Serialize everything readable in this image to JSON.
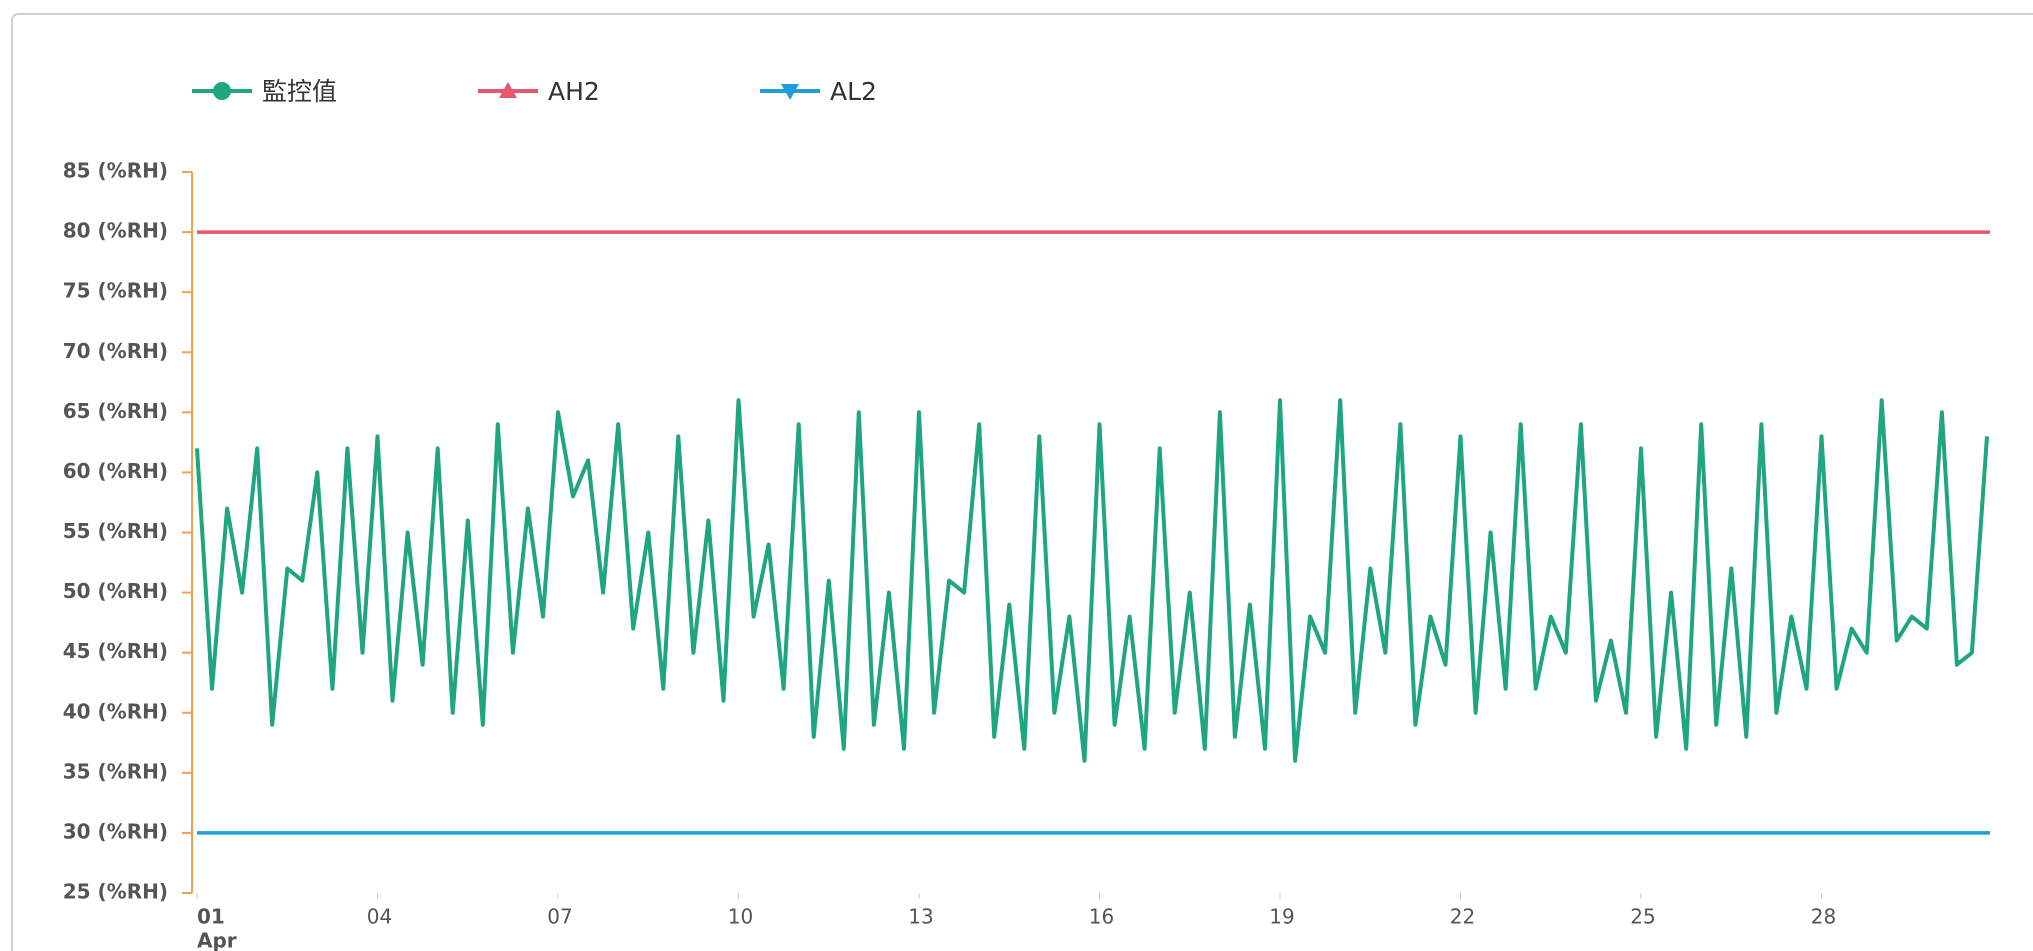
{
  "chart_data": {
    "type": "line",
    "x": [
      1,
      1.25,
      1.5,
      1.75,
      2,
      2.25,
      2.5,
      2.75,
      3,
      3.25,
      3.5,
      3.75,
      4,
      4.25,
      4.5,
      4.75,
      5,
      5.25,
      5.5,
      5.75,
      6,
      6.25,
      6.5,
      6.75,
      7,
      7.25,
      7.5,
      7.75,
      8,
      8.25,
      8.5,
      8.75,
      9,
      9.25,
      9.5,
      9.75,
      10,
      10.25,
      10.5,
      10.75,
      11,
      11.25,
      11.5,
      11.75,
      12,
      12.25,
      12.5,
      12.75,
      13,
      13.25,
      13.5,
      13.75,
      14,
      14.25,
      14.5,
      14.75,
      15,
      15.25,
      15.5,
      15.75,
      16,
      16.25,
      16.5,
      16.75,
      17,
      17.25,
      17.5,
      17.75,
      18,
      18.25,
      18.5,
      18.75,
      19,
      19.25,
      19.5,
      19.75,
      20,
      20.25,
      20.5,
      20.75,
      21,
      21.25,
      21.5,
      21.75,
      22,
      22.25,
      22.5,
      22.75,
      23,
      23.25,
      23.5,
      23.75,
      24,
      24.25,
      24.5,
      24.75,
      25,
      25.25,
      25.5,
      25.75,
      26,
      26.25,
      26.5,
      26.75,
      27,
      27.25,
      27.5,
      27.75,
      28,
      28.25,
      28.5,
      28.75,
      29,
      29.25,
      29.5,
      29.75,
      30,
      30.25,
      30.5,
      30.75
    ],
    "series": [
      {
        "name": "監控值",
        "color": "#1fa67f",
        "marker": "circle",
        "values": [
          62,
          42,
          57,
          50,
          62,
          39,
          52,
          51,
          60,
          42,
          62,
          45,
          63,
          41,
          55,
          44,
          62,
          40,
          56,
          39,
          64,
          45,
          57,
          48,
          65,
          58,
          61,
          50,
          64,
          47,
          55,
          42,
          63,
          45,
          56,
          41,
          66,
          48,
          54,
          42,
          64,
          38,
          51,
          37,
          65,
          39,
          50,
          37,
          65,
          40,
          51,
          50,
          64,
          38,
          49,
          37,
          63,
          40,
          48,
          36,
          64,
          39,
          48,
          37,
          62,
          40,
          50,
          37,
          65,
          38,
          49,
          37,
          66,
          36,
          48,
          45,
          66,
          40,
          52,
          45,
          64,
          39,
          48,
          44,
          63,
          40,
          55,
          42,
          64,
          42,
          48,
          45,
          64,
          41,
          46,
          40,
          62,
          38,
          50,
          37,
          64,
          39,
          52,
          38,
          64,
          40,
          48,
          42,
          63,
          42,
          47,
          45,
          66,
          46,
          48,
          47,
          65,
          44,
          45,
          63
        ]
      },
      {
        "name": "AH2",
        "color": "#e8566e",
        "marker": "triangle-up",
        "x": [
          1,
          30.8
        ],
        "values": [
          80,
          80
        ]
      },
      {
        "name": "AL2",
        "color": "#1e9fd8",
        "marker": "triangle-down",
        "x": [
          1,
          30.8
        ],
        "values": [
          30,
          30
        ]
      }
    ],
    "xlim": [
      1,
      30.8
    ],
    "xticks": [
      {
        "value": 1,
        "label": "01"
      },
      {
        "value": 4,
        "label": "04"
      },
      {
        "value": 7,
        "label": "07"
      },
      10,
      13,
      16,
      19,
      22,
      25,
      28
    ],
    "x_sublabel": "Apr",
    "ylim": [
      25,
      85
    ],
    "yticks": [
      {
        "value": 25,
        "label": "25 (%RH)"
      },
      {
        "value": 30,
        "label": "30 (%RH)"
      },
      {
        "value": 35,
        "label": "35 (%RH)"
      },
      {
        "value": 40,
        "label": "40 (%RH)"
      },
      {
        "value": 45,
        "label": "45 (%RH)"
      },
      {
        "value": 50,
        "label": "50 (%RH)"
      },
      {
        "value": 55,
        "label": "55 (%RH)"
      },
      {
        "value": 60,
        "label": "60 (%RH)"
      },
      {
        "value": 65,
        "label": "65 (%RH)"
      },
      {
        "value": 70,
        "label": "70 (%RH)"
      },
      {
        "value": 75,
        "label": "75 (%RH)"
      },
      {
        "value": 80,
        "label": "80 (%RH)"
      },
      {
        "value": 85,
        "label": "85 (%RH)"
      }
    ]
  }
}
